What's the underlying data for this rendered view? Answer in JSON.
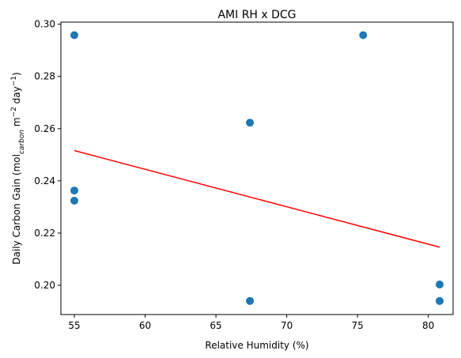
{
  "chart_data": {
    "type": "scatter",
    "title": "AMI RH x DCG",
    "xlabel": "Relative Humidity (%)",
    "ylabel": {
      "prefix": "Daily Carbon Gain (mol",
      "sub": "carbon",
      "mid1": " m",
      "sup1": "−2",
      "mid2": " day",
      "sup2": "−1",
      "suffix": ")"
    },
    "xlim": [
      54.05,
      81.75
    ],
    "ylim": [
      0.1888,
      0.3008
    ],
    "xticks": [
      55,
      60,
      65,
      70,
      75,
      80
    ],
    "yticks": [
      0.2,
      0.22,
      0.24,
      0.26,
      0.28,
      0.3
    ],
    "xtick_labels": [
      "55",
      "60",
      "65",
      "70",
      "75",
      "80"
    ],
    "ytick_labels": [
      "0.20",
      "0.22",
      "0.24",
      "0.26",
      "0.28",
      "0.30"
    ],
    "points": [
      {
        "x": 55.0,
        "y": 0.2958
      },
      {
        "x": 55.0,
        "y": 0.2363
      },
      {
        "x": 55.0,
        "y": 0.2324
      },
      {
        "x": 67.4,
        "y": 0.2623
      },
      {
        "x": 67.4,
        "y": 0.194
      },
      {
        "x": 75.4,
        "y": 0.2958
      },
      {
        "x": 80.8,
        "y": 0.2003
      },
      {
        "x": 80.8,
        "y": 0.194
      }
    ],
    "trend_line": {
      "x": [
        55.0,
        80.8
      ],
      "y": [
        0.2516,
        0.2146
      ]
    },
    "colors": {
      "points": "#1f77b4",
      "trend": "#ff0000"
    }
  }
}
